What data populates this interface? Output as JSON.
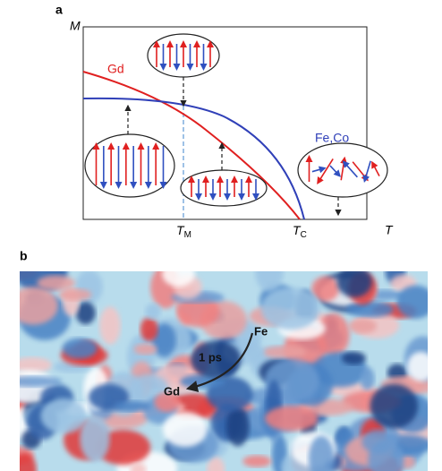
{
  "panel_a": {
    "label": "a",
    "y_axis_label": "M",
    "x_axis_label": "T",
    "ticks": [
      {
        "main": "T",
        "sub": "M"
      },
      {
        "main": "T",
        "sub": "C"
      }
    ],
    "curves": [
      {
        "label": "Gd"
      },
      {
        "label": "Fe,Co"
      }
    ]
  },
  "panel_b": {
    "label": "b",
    "annotations": {
      "start": "Fe",
      "time": "1 ps",
      "end": "Gd"
    }
  }
}
